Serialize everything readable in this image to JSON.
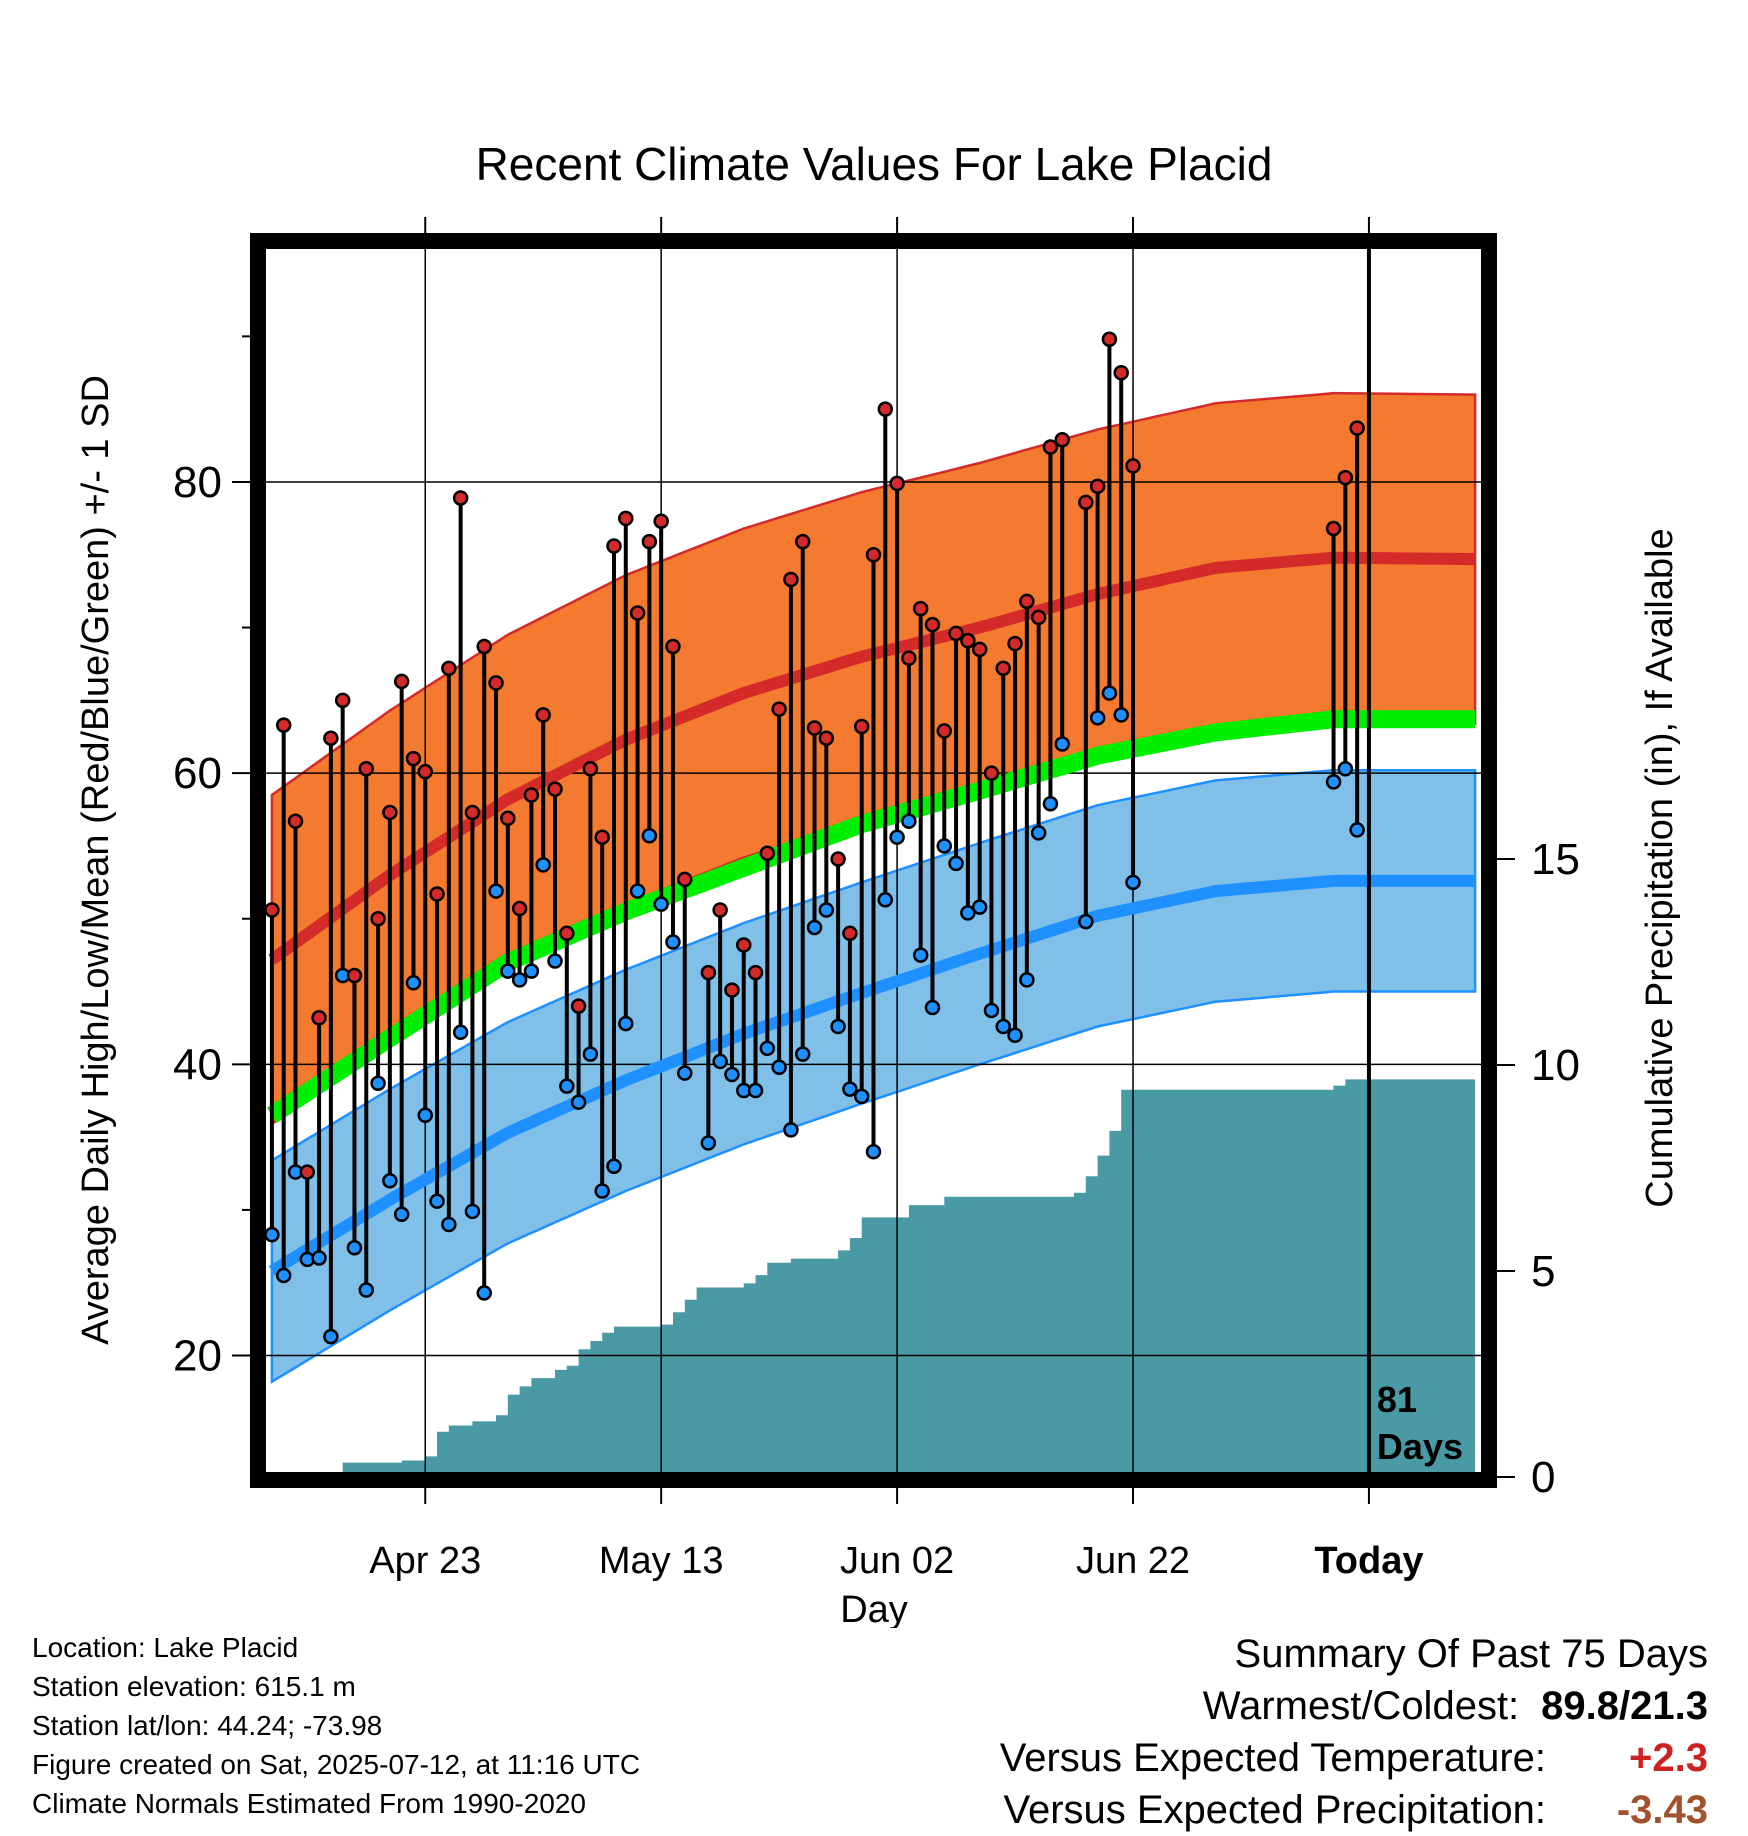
{
  "chart_data": {
    "type": "line",
    "title": "Recent Climate Values For Lake Placid",
    "xlabel": "Day",
    "ylabel": "Average Daily High/Low/Mean (Red/Blue/Green) +/- 1 SD",
    "y2label": "Cumulative Precipitation (in), If Available",
    "xlim_days": [
      -93.5,
      9.5
    ],
    "ylim": [
      12,
      96
    ],
    "y2lim": [
      0,
      30
    ],
    "yticks": [
      20,
      40,
      60,
      80
    ],
    "y2ticks": [
      0,
      5,
      10,
      15
    ],
    "xticks": [
      {
        "day": -80,
        "label": "Apr 23"
      },
      {
        "day": -60,
        "label": "May 13"
      },
      {
        "day": -40,
        "label": "Jun 02"
      },
      {
        "day": -20,
        "label": "Jun 22"
      },
      {
        "day": 0,
        "label": "Today"
      }
    ],
    "today_marker": {
      "day": 0,
      "label_top": "81",
      "label_bottom": "Days"
    },
    "colors": {
      "high": "#d42a2a",
      "high_band": "#f47a30",
      "low": "#1e90ff",
      "low_band": "#80c0e8",
      "mean": "#00ee00",
      "precip": "#4a9aa5"
    },
    "normals": {
      "days": [
        -93,
        -83,
        -73,
        -63,
        -53,
        -43,
        -33,
        -23,
        -13,
        -3,
        9
      ],
      "high_mean": [
        47.2,
        53.0,
        58.2,
        62.3,
        65.5,
        68.0,
        70.0,
        72.3,
        74.1,
        74.8,
        74.7
      ],
      "high_sd": 11.3,
      "low_mean": [
        25.8,
        30.7,
        35.3,
        38.9,
        42.1,
        44.9,
        47.6,
        50.2,
        51.9,
        52.6,
        52.6
      ],
      "low_sd": 7.6,
      "mean": [
        36.5,
        41.8,
        47.0,
        50.5,
        53.5,
        56.5,
        58.8,
        61.2,
        62.8,
        63.7,
        63.7
      ]
    },
    "daily": [
      {
        "day": -93,
        "high": 50.6,
        "low": 28.3
      },
      {
        "day": -92,
        "high": 63.3,
        "low": 25.5
      },
      {
        "day": -91,
        "high": 56.7,
        "low": 32.6
      },
      {
        "day": -90,
        "high": 32.6,
        "low": 26.6
      },
      {
        "day": -89,
        "high": 43.2,
        "low": 26.7
      },
      {
        "day": -88,
        "high": 62.4,
        "low": 21.3
      },
      {
        "day": -87,
        "high": 65.0,
        "low": 46.1
      },
      {
        "day": -86,
        "high": 46.1,
        "low": 27.4
      },
      {
        "day": -85,
        "high": 60.3,
        "low": 24.5
      },
      {
        "day": -84,
        "high": 50.0,
        "low": 38.7
      },
      {
        "day": -83,
        "high": 57.3,
        "low": 32.0
      },
      {
        "day": -82,
        "high": 66.3,
        "low": 29.7
      },
      {
        "day": -81,
        "high": 61.0,
        "low": 45.6
      },
      {
        "day": -80,
        "high": 60.1,
        "low": 36.5
      },
      {
        "day": -79,
        "high": 51.7,
        "low": 30.6
      },
      {
        "day": -78,
        "high": 67.2,
        "low": 29.0
      },
      {
        "day": -77,
        "high": 78.9,
        "low": 42.2
      },
      {
        "day": -76,
        "high": 57.3,
        "low": 29.9
      },
      {
        "day": -75,
        "high": 68.7,
        "low": 24.3
      },
      {
        "day": -74,
        "high": 66.2,
        "low": 51.9
      },
      {
        "day": -73,
        "high": 56.9,
        "low": 46.4
      },
      {
        "day": -72,
        "high": 50.7,
        "low": 45.8
      },
      {
        "day": -71,
        "high": 58.5,
        "low": 46.4
      },
      {
        "day": -70,
        "high": 64.0,
        "low": 53.7
      },
      {
        "day": -69,
        "high": 58.9,
        "low": 47.1
      },
      {
        "day": -68,
        "high": 49.0,
        "low": 38.5
      },
      {
        "day": -67,
        "high": 44.0,
        "low": 37.4
      },
      {
        "day": -66,
        "high": 60.3,
        "low": 40.7
      },
      {
        "day": -65,
        "high": 55.6,
        "low": 31.3
      },
      {
        "day": -64,
        "high": 75.6,
        "low": 33.0
      },
      {
        "day": -63,
        "high": 77.5,
        "low": 42.8
      },
      {
        "day": -62,
        "high": 71.0,
        "low": 51.9
      },
      {
        "day": -61,
        "high": 75.9,
        "low": 55.7
      },
      {
        "day": -60,
        "high": 77.3,
        "low": 51.0
      },
      {
        "day": -59,
        "high": 68.7,
        "low": 48.4
      },
      {
        "day": -58,
        "high": 52.7,
        "low": 39.4
      },
      {
        "day": -56,
        "high": 46.3,
        "low": 34.6
      },
      {
        "day": -55,
        "high": 50.6,
        "low": 40.2
      },
      {
        "day": -54,
        "high": 45.1,
        "low": 39.3
      },
      {
        "day": -53,
        "high": 48.2,
        "low": 38.2
      },
      {
        "day": -52,
        "high": 46.3,
        "low": 38.2
      },
      {
        "day": -51,
        "high": 54.5,
        "low": 41.1
      },
      {
        "day": -50,
        "high": 64.4,
        "low": 39.8
      },
      {
        "day": -49,
        "high": 73.3,
        "low": 35.5
      },
      {
        "day": -48,
        "high": 75.9,
        "low": 40.7
      },
      {
        "day": -47,
        "high": 63.1,
        "low": 49.4
      },
      {
        "day": -46,
        "high": 62.4,
        "low": 50.6
      },
      {
        "day": -45,
        "high": 54.1,
        "low": 42.6
      },
      {
        "day": -44,
        "high": 49.0,
        "low": 38.3
      },
      {
        "day": -43,
        "high": 63.2,
        "low": 37.8
      },
      {
        "day": -42,
        "high": 75.0,
        "low": 34.0
      },
      {
        "day": -41,
        "high": 85.0,
        "low": 51.3
      },
      {
        "day": -40,
        "high": 79.9,
        "low": 55.6
      },
      {
        "day": -39,
        "high": 67.9,
        "low": 56.7
      },
      {
        "day": -38,
        "high": 71.3,
        "low": 47.5
      },
      {
        "day": -37,
        "high": 70.2,
        "low": 43.9
      },
      {
        "day": -36,
        "high": 62.9,
        "low": 55.0
      },
      {
        "day": -35,
        "high": 69.6,
        "low": 53.8
      },
      {
        "day": -34,
        "high": 69.1,
        "low": 50.4
      },
      {
        "day": -33,
        "high": 68.5,
        "low": 50.8
      },
      {
        "day": -32,
        "high": 60.0,
        "low": 43.7
      },
      {
        "day": -31,
        "high": 67.2,
        "low": 42.6
      },
      {
        "day": -30,
        "high": 68.9,
        "low": 42.0
      },
      {
        "day": -29,
        "high": 71.8,
        "low": 45.8
      },
      {
        "day": -28,
        "high": 70.7,
        "low": 55.9
      },
      {
        "day": -27,
        "high": 82.4,
        "low": 57.9
      },
      {
        "day": -26,
        "high": 82.9,
        "low": 62.0
      },
      {
        "day": -24,
        "high": 78.6,
        "low": 49.8
      },
      {
        "day": -23,
        "high": 79.7,
        "low": 63.8
      },
      {
        "day": -22,
        "high": 89.8,
        "low": 65.5
      },
      {
        "day": -21,
        "high": 87.5,
        "low": 64.0
      },
      {
        "day": -20,
        "high": 81.1,
        "low": 52.5
      },
      {
        "day": -3,
        "high": 76.8,
        "low": 59.4
      },
      {
        "day": -2,
        "high": 80.3,
        "low": 60.3
      },
      {
        "day": -1,
        "high": 83.7,
        "low": 56.1
      }
    ],
    "precip_cumulative": [
      [
        -93,
        0
      ],
      [
        -88,
        0
      ],
      [
        -87,
        0.35
      ],
      [
        -82,
        0.4
      ],
      [
        -80,
        0.5
      ],
      [
        -79,
        1.1
      ],
      [
        -78,
        1.25
      ],
      [
        -76,
        1.35
      ],
      [
        -74,
        1.5
      ],
      [
        -73,
        2.0
      ],
      [
        -72,
        2.2
      ],
      [
        -71,
        2.4
      ],
      [
        -69,
        2.6
      ],
      [
        -68,
        2.7
      ],
      [
        -67,
        3.1
      ],
      [
        -66,
        3.3
      ],
      [
        -65,
        3.5
      ],
      [
        -64,
        3.65
      ],
      [
        -60,
        3.7
      ],
      [
        -59,
        4.0
      ],
      [
        -58,
        4.3
      ],
      [
        -57,
        4.6
      ],
      [
        -53,
        4.7
      ],
      [
        -52,
        4.9
      ],
      [
        -51,
        5.2
      ],
      [
        -49,
        5.3
      ],
      [
        -45,
        5.5
      ],
      [
        -44,
        5.8
      ],
      [
        -43,
        6.3
      ],
      [
        -39,
        6.6
      ],
      [
        -36,
        6.8
      ],
      [
        -25,
        6.9
      ],
      [
        -24,
        7.3
      ],
      [
        -23,
        7.8
      ],
      [
        -22,
        8.4
      ],
      [
        -21,
        9.4
      ],
      [
        -3,
        9.5
      ],
      [
        -2,
        9.65
      ],
      [
        9,
        9.65
      ]
    ]
  },
  "footer": {
    "info_lines": [
      "Location: Lake Placid",
      "Station elevation: 615.1 m",
      "Station lat/lon: 44.24; -73.98",
      "Figure created on Sat, 2025-07-12, at 11:16 UTC",
      "Climate Normals Estimated From 1990-2020"
    ],
    "summary_title": "Summary Of Past 75 Days",
    "warmest_label": "Warmest/Coldest:",
    "warmest_value": "89.8/21.3",
    "temp_label": "Versus Expected Temperature:",
    "temp_value": "+2.3",
    "temp_color": "#cc2222",
    "precip_label": "Versus Expected Precipitation:",
    "precip_value": "-3.43",
    "precip_color": "#a0522d"
  }
}
